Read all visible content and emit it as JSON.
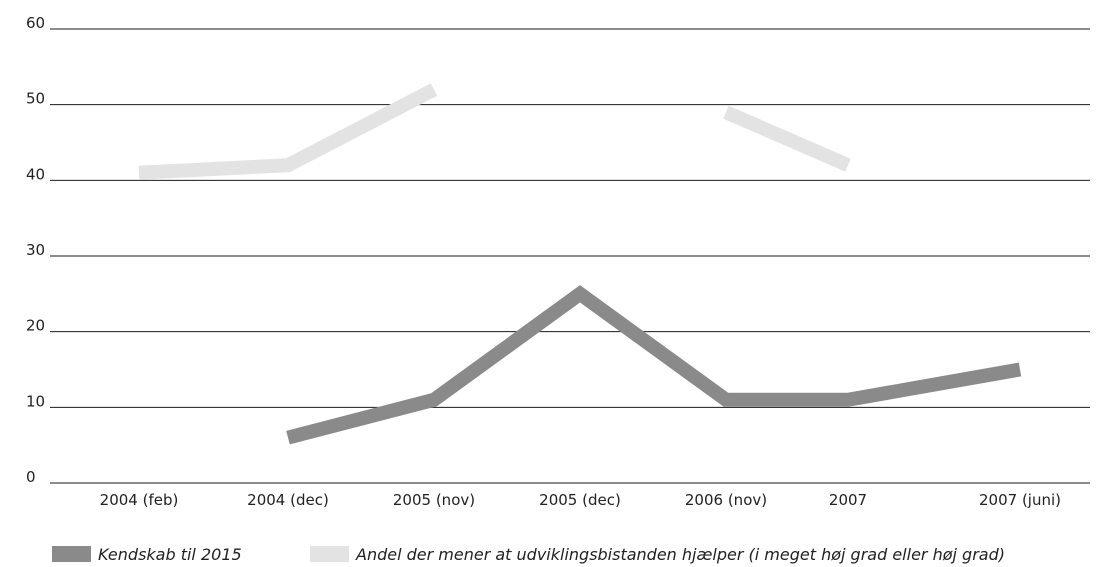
{
  "chart_data": {
    "type": "line",
    "categories": [
      "2004 (feb)",
      "2004 (dec)",
      "2005 (nov)",
      "2005 (dec)",
      "2006 (nov)",
      "2007",
      "2007 (juni)"
    ],
    "series": [
      {
        "name": "Kendskab til 2015",
        "color": "#8a8a8a",
        "values": [
          null,
          6,
          11,
          25,
          11,
          11,
          15
        ]
      },
      {
        "name": "Andel der mener at udviklingsbistanden hjælper (i meget høj grad eller høj grad)",
        "color": "#e3e3e3",
        "values": [
          41,
          42,
          52,
          null,
          49,
          42,
          null
        ]
      }
    ],
    "ylim": [
      0,
      60
    ],
    "yticks": [
      0,
      10,
      20,
      30,
      40,
      50,
      60
    ],
    "ytick_labels": [
      "0",
      "10",
      "20",
      "30",
      "40",
      "50",
      "60"
    ],
    "grid": true,
    "legend_position": "bottom",
    "title": "",
    "xlabel": "",
    "ylabel": ""
  }
}
